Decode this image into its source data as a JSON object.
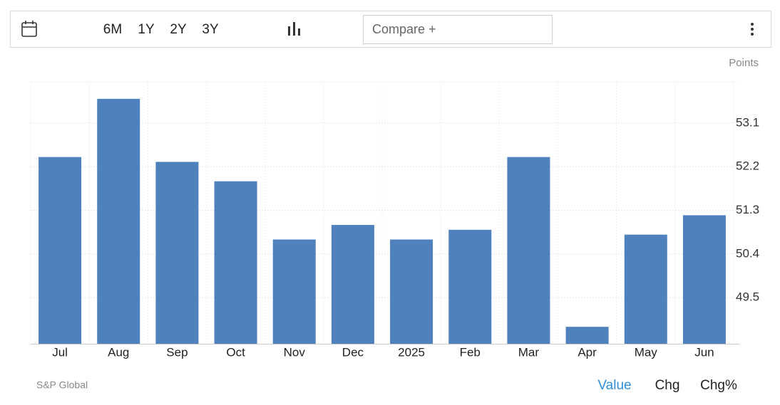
{
  "toolbar": {
    "ranges": [
      "6M",
      "1Y",
      "2Y",
      "3Y"
    ],
    "compare": "Compare +"
  },
  "chart_data": {
    "type": "bar",
    "ylabel": "Points",
    "categories": [
      "Jul",
      "Aug",
      "Sep",
      "Oct",
      "Nov",
      "Dec",
      "2025",
      "Feb",
      "Mar",
      "Apr",
      "May",
      "Jun"
    ],
    "values": [
      52.4,
      53.6,
      52.3,
      51.9,
      50.7,
      51.0,
      50.7,
      50.9,
      52.4,
      48.9,
      50.8,
      51.2
    ],
    "color": "#4f81bd",
    "ylim": [
      48.55,
      53.95
    ],
    "yticks": [
      49.5,
      50.4,
      51.3,
      52.2,
      53.1
    ],
    "grid": true
  },
  "footer": {
    "source": "S&P Global",
    "tabs": [
      "Value",
      "Chg",
      "Chg%"
    ]
  }
}
